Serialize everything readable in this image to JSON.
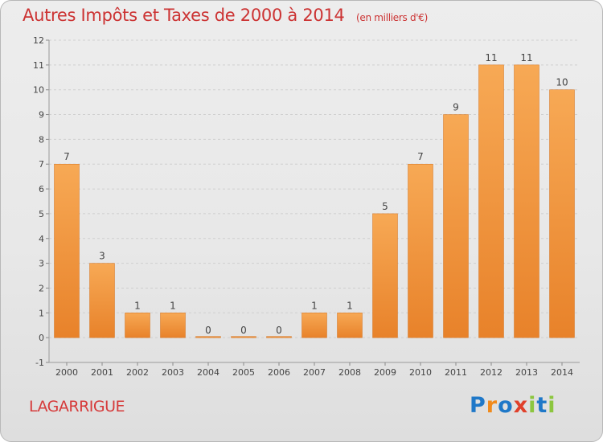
{
  "chart_data": {
    "type": "bar",
    "title": "Autres Impôts et Taxes de 2000 à 2014",
    "subtitle": "(en milliers d'€)",
    "categories": [
      "2000",
      "2001",
      "2002",
      "2003",
      "2004",
      "2005",
      "2006",
      "2007",
      "2008",
      "2009",
      "2010",
      "2011",
      "2012",
      "2013",
      "2014"
    ],
    "values": [
      7,
      3,
      1,
      1,
      0,
      0,
      0,
      1,
      1,
      5,
      7,
      9,
      11,
      11,
      10
    ],
    "data_labels": [
      "7",
      "3",
      "1",
      "1",
      "0",
      "0",
      "0",
      "1",
      "1",
      "5",
      "7",
      "9",
      "11",
      "11",
      "10"
    ],
    "ylim": [
      -1,
      12
    ],
    "yticks": [
      "-1",
      "0",
      "1",
      "2",
      "3",
      "4",
      "5",
      "6",
      "7",
      "8",
      "9",
      "10",
      "11",
      "12"
    ],
    "grid": "horizontal dashed",
    "xlabel": "",
    "ylabel": "",
    "bar_color": "#e8822a",
    "bar_color_light": "#f7a955"
  },
  "footer": {
    "commune": "LAGARRIGUE",
    "logo_text": "Proxiti",
    "logo_letters": [
      {
        "ch": "P",
        "color": "#1f78c8"
      },
      {
        "ch": "r",
        "color": "#f08a1c"
      },
      {
        "ch": "o",
        "color": "#1f78c8"
      },
      {
        "ch": "x",
        "color": "#e0402a"
      },
      {
        "ch": "i",
        "color": "#8cc63f"
      },
      {
        "ch": "t",
        "color": "#1f78c8"
      },
      {
        "ch": "i",
        "color": "#8cc63f"
      }
    ]
  }
}
